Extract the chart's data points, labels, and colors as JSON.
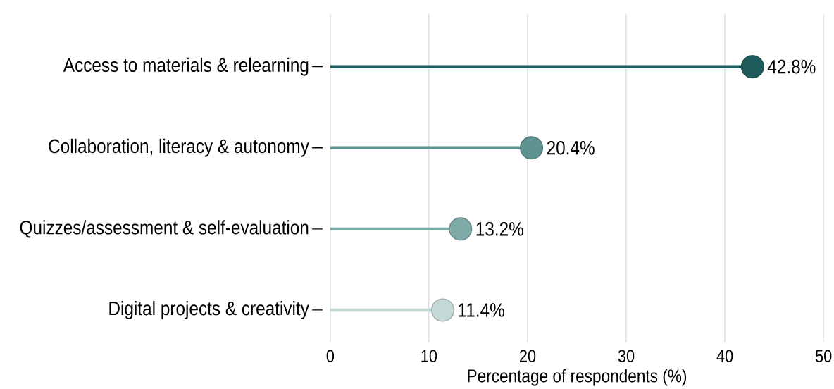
{
  "chart_data": {
    "type": "lollipop",
    "orientation": "horizontal",
    "xlabel": "Percentage of respondents (%)",
    "categories": [
      "Access to materials & relearning",
      "Collaboration, literacy & autonomy",
      "Quizzes/assessment & self-evaluation",
      "Digital projects & creativity"
    ],
    "values": [
      42.8,
      20.4,
      13.2,
      11.4
    ],
    "colors": [
      "#1e5b5c",
      "#5f9391",
      "#7eaaa8",
      "#c3d9d7"
    ],
    "value_labels": [
      "42.8%",
      "20.4%",
      "13.2%",
      "11.4%"
    ],
    "xlim": [
      0,
      50
    ],
    "xticks": [
      0,
      10,
      20,
      30,
      40,
      50
    ],
    "grid": "x",
    "marker": "circle"
  }
}
